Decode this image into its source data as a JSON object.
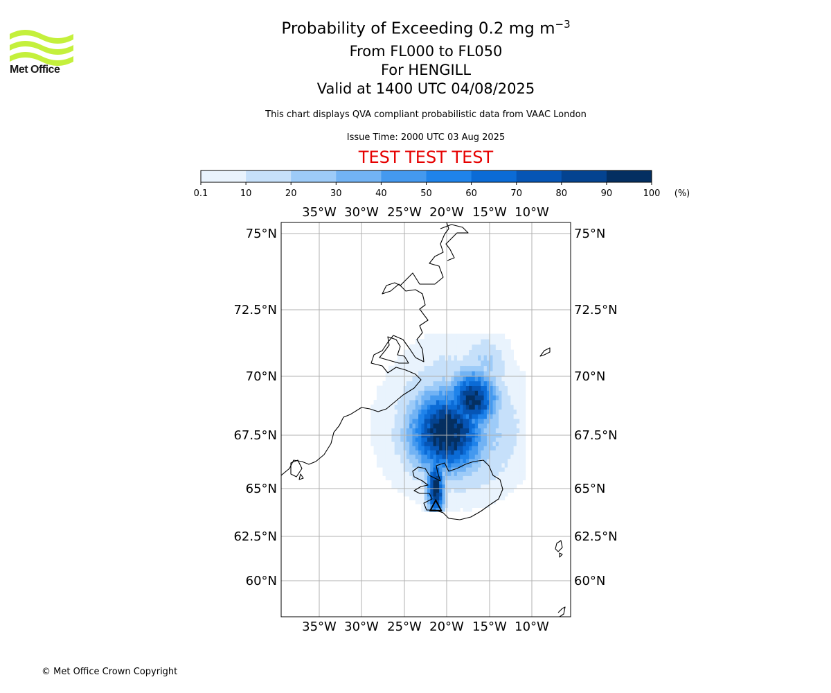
{
  "header": {
    "logo_text": "Met Office",
    "title_main": "Probability of Exceeding 0.2 mg m",
    "title_superscript": "−3",
    "title_levels": "From FL000 to FL050",
    "title_volcano": "For HENGILL",
    "title_valid": "Valid at 1400 UTC 04/08/2025",
    "description": "This chart displays QVA compliant probabilistic data from VAAC London",
    "issue_time": "Issue Time: 2000 UTC 03 Aug 2025",
    "test_banner": "TEST TEST TEST"
  },
  "colorbar": {
    "ticks": [
      "0.1",
      "10",
      "20",
      "30",
      "40",
      "50",
      "60",
      "70",
      "80",
      "90",
      "100"
    ],
    "unit": "(%)",
    "colors": [
      "#e9f3fd",
      "#c6e0fa",
      "#9dcbf8",
      "#72b3f4",
      "#4499ef",
      "#1f83ea",
      "#0b6bd6",
      "#0655b5",
      "#044390",
      "#042f61"
    ]
  },
  "map": {
    "lon_labels": [
      "35°W",
      "30°W",
      "25°W",
      "20°W",
      "15°W",
      "10°W"
    ],
    "lat_labels": [
      "75°N",
      "72.5°N",
      "70°N",
      "67.5°N",
      "65°N",
      "62.5°N",
      "60°N"
    ],
    "gridline_color": "#b0b0b0",
    "volcano_marker": "triangle"
  },
  "footer": {
    "copyright": "© Met Office Crown Copyright"
  }
}
